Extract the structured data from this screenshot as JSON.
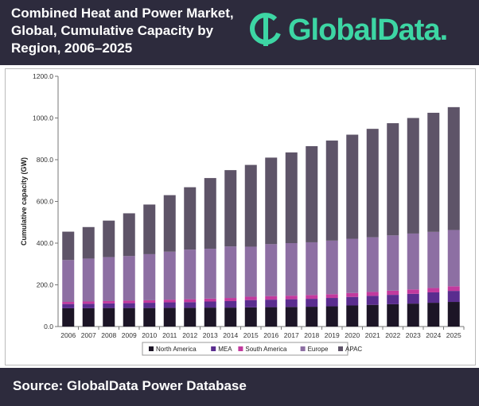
{
  "header": {
    "title": "Combined Heat and Power Market, Global, Cumulative Capacity by Region, 2006–2025",
    "logo_text": "GlobalData."
  },
  "footer": {
    "source": "Source: GlobalData Power Database"
  },
  "chart_data": {
    "type": "bar",
    "stacked": true,
    "title": "Combined Heat and Power Market, Global, Cumulative Capacity by Region, 2006–2025",
    "xlabel": "",
    "ylabel": "Cumulative capacity (GW)",
    "ylim": [
      0,
      1200
    ],
    "yticks": [
      "0.0",
      "200.0",
      "400.0",
      "600.0",
      "800.0",
      "1000.0",
      "1200.0"
    ],
    "grid": false,
    "legend": "bottom",
    "categories": [
      "2006",
      "2007",
      "2008",
      "2009",
      "2010",
      "2011",
      "2012",
      "2013",
      "2014",
      "2015",
      "2016",
      "2017",
      "2018",
      "2019",
      "2020",
      "2021",
      "2022",
      "2023",
      "2024",
      "2025"
    ],
    "series": [
      {
        "name": "North America",
        "color": "#1c1526",
        "values": [
          88,
          88,
          89,
          89,
          89,
          90,
          90,
          91,
          91,
          92,
          93,
          94,
          95,
          97,
          101,
          104,
          107,
          110,
          114,
          118
        ]
      },
      {
        "name": "MEA",
        "color": "#5a2d8f",
        "values": [
          20,
          21,
          22,
          23,
          25,
          26,
          27,
          29,
          31,
          35,
          36,
          37,
          38,
          40,
          41,
          43,
          45,
          47,
          50,
          53
        ]
      },
      {
        "name": "South America",
        "color": "#c23a9e",
        "values": [
          10,
          11,
          11,
          12,
          12,
          13,
          14,
          14,
          15,
          16,
          17,
          17,
          18,
          18,
          19,
          19,
          20,
          21,
          21,
          22
        ]
      },
      {
        "name": "Europe",
        "color": "#8d6fa3",
        "values": [
          201,
          206,
          211,
          214,
          221,
          230,
          238,
          239,
          247,
          240,
          249,
          252,
          253,
          257,
          260,
          262,
          265,
          268,
          269,
          270
        ]
      },
      {
        "name": "APAC",
        "color": "#5e5468",
        "values": [
          136,
          151,
          175,
          205,
          238,
          271,
          299,
          339,
          366,
          392,
          415,
          435,
          461,
          480,
          499,
          520,
          538,
          554,
          571,
          589
        ]
      }
    ]
  }
}
